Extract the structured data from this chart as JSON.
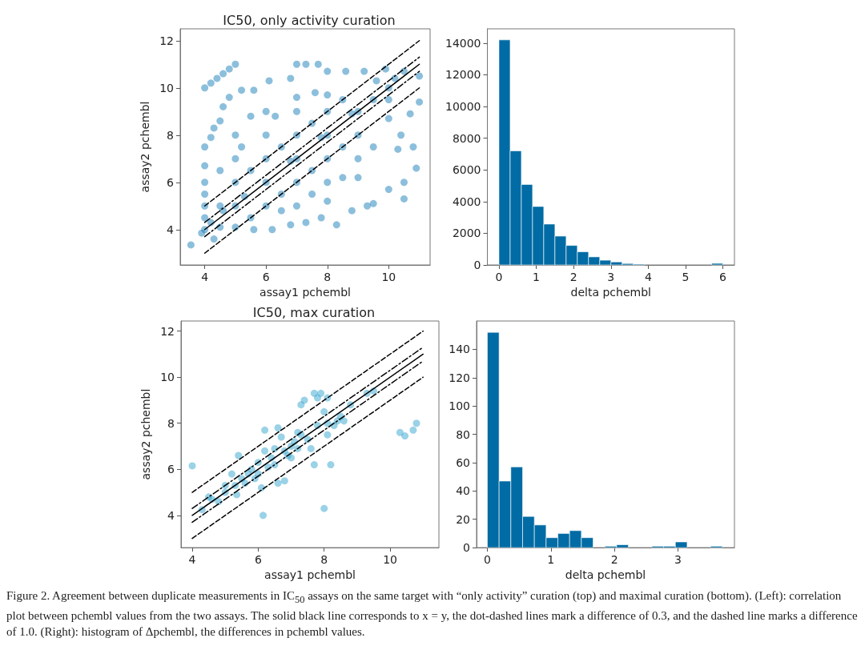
{
  "chart_data": [
    {
      "type": "scatter",
      "title": "IC50, only activity curation",
      "xlabel": "assay1 pchembl",
      "ylabel": "assay2 pchembl",
      "xlim": [
        3.2,
        11.35
      ],
      "ylim": [
        2.5,
        12.5
      ],
      "xticks": [
        4,
        6,
        8,
        10
      ],
      "yticks": [
        4,
        6,
        8,
        10,
        12
      ],
      "grid": false,
      "series": [
        {
          "type": "scatter",
          "marker": "circle",
          "color": "#0072b2",
          "x": [
            4,
            4.2,
            4.4,
            4.6,
            4.8,
            5,
            3.55,
            3.9,
            4,
            4,
            4,
            4,
            4,
            4,
            4,
            4.2,
            4.3,
            4.5,
            4.6,
            4.8,
            5.2,
            5.6,
            6.1,
            6.8,
            7.0,
            7.3,
            7.7,
            8.0,
            8.6,
            9.2,
            9.9,
            10.5,
            11,
            11,
            10.7,
            10.4,
            10.3,
            10.8,
            10.9,
            10.5,
            10.5,
            10.0,
            9.5,
            9.3,
            8.8,
            8.3,
            7.8,
            7.3,
            6.8,
            6.2,
            5.6,
            5.0,
            4.5,
            4.3,
            5,
            5,
            5,
            5,
            5.5,
            6,
            6,
            6,
            6,
            6,
            7,
            7,
            7,
            7,
            7,
            7,
            8,
            8,
            8,
            8,
            8,
            8,
            9,
            9,
            9,
            9,
            9.5,
            10,
            10,
            10,
            5.5,
            6.5,
            7.5,
            8.5,
            4.5,
            4.5,
            5.5,
            6.5,
            7.5,
            8.5,
            6.5,
            7.5,
            8.5,
            9.5,
            5.2,
            6.3,
            7.6,
            9.6,
            10.2,
            4.2,
            4.6,
            5.3,
            6.8,
            7.8,
            8.8
          ],
          "values": [
            10,
            10.2,
            10.4,
            10.6,
            10.8,
            11,
            3.35,
            3.85,
            4,
            4.5,
            5,
            5.5,
            6,
            6.7,
            7.5,
            7.9,
            8.3,
            8.6,
            9.2,
            9.6,
            9.9,
            9.9,
            10.3,
            10.4,
            11,
            11,
            11,
            10.7,
            10.7,
            10.7,
            10.8,
            10.7,
            10.5,
            9.4,
            8.9,
            8.0,
            7.4,
            7.5,
            6.6,
            6.0,
            5.3,
            5.7,
            5.1,
            5.0,
            4.8,
            4.2,
            4.5,
            4.3,
            4.2,
            4.0,
            4.0,
            4.1,
            4.1,
            3.6,
            5,
            6,
            7,
            8,
            8.8,
            6,
            7,
            8,
            9,
            5,
            5,
            6,
            7,
            8,
            9,
            9.6,
            6,
            7,
            8,
            9,
            9.7,
            5.2,
            7,
            8,
            9,
            6.2,
            9.5,
            9.5,
            8.7,
            10,
            4.5,
            5.5,
            6.5,
            7.5,
            5,
            6.5,
            6.5,
            7.5,
            8.5,
            9.5,
            4.8,
            5.5,
            6.2,
            7.5,
            7.5,
            8.8,
            9.8,
            10.3,
            10.4,
            4.3,
            4.8,
            5.4,
            6.9,
            7.9,
            8.9
          ]
        },
        {
          "type": "line",
          "color": "#000000",
          "line_style": "solid",
          "x": [
            4,
            11
          ],
          "values": [
            4,
            11
          ]
        },
        {
          "type": "line",
          "color": "#000000",
          "line_style": "dashdot",
          "x": [
            4,
            11
          ],
          "values": [
            4.3,
            11.3
          ]
        },
        {
          "type": "line",
          "color": "#000000",
          "line_style": "dashdot",
          "x": [
            4,
            11
          ],
          "values": [
            3.7,
            10.7
          ]
        },
        {
          "type": "line",
          "color": "#000000",
          "line_style": "dashed",
          "x": [
            4,
            11
          ],
          "values": [
            5,
            12
          ]
        },
        {
          "type": "line",
          "color": "#000000",
          "line_style": "dashed",
          "x": [
            4,
            11
          ],
          "values": [
            3,
            10
          ]
        }
      ]
    },
    {
      "type": "histogram",
      "xlabel": "delta pchembl",
      "xlim": [
        -0.31,
        6.31
      ],
      "ylim": [
        0,
        14900
      ],
      "xticks": [
        0,
        1,
        2,
        3,
        4,
        5,
        6
      ],
      "yticks": [
        0,
        2000,
        4000,
        6000,
        8000,
        10000,
        12000,
        14000
      ],
      "grid": false,
      "color": "#006ba4",
      "bins": [
        0,
        0.3,
        0.6,
        0.9,
        1.2,
        1.5,
        1.8,
        2.1,
        2.4,
        2.7,
        3.0,
        3.3,
        3.6,
        3.9,
        4.2,
        4.5,
        4.8,
        5.1,
        5.4,
        5.7,
        6.0
      ],
      "values": [
        14200,
        7200,
        5080,
        3690,
        2580,
        1820,
        1230,
        830,
        510,
        300,
        190,
        90,
        50,
        null,
        0,
        0,
        0,
        0,
        0,
        100
      ]
    },
    {
      "type": "scatter",
      "title": "IC50, max curation",
      "xlabel": "assay1 pchembl",
      "ylabel": "assay2 pchembl",
      "xlim": [
        3.66,
        11.48
      ],
      "ylim": [
        2.6,
        12.44
      ],
      "xticks": [
        4,
        6,
        8,
        10
      ],
      "yticks": [
        4,
        6,
        8,
        10,
        12
      ],
      "grid": false,
      "series": [
        {
          "type": "scatter",
          "marker": "circle",
          "color": "#1f9bc9",
          "x": [
            4,
            4.3,
            4.5,
            4.6,
            4.8,
            5.0,
            5.2,
            5.3,
            5.35,
            5.4,
            5.5,
            5.6,
            5.7,
            5.8,
            5.9,
            6.0,
            6.1,
            6.15,
            6.2,
            6.2,
            6.3,
            6.4,
            6.5,
            6.5,
            6.6,
            6.6,
            6.7,
            6.8,
            6.8,
            6.9,
            7.0,
            7.0,
            7.1,
            7.2,
            7.3,
            7.3,
            7.4,
            7.5,
            7.6,
            7.7,
            7.7,
            7.8,
            7.8,
            7.9,
            8.0,
            8.0,
            8.1,
            8.1,
            8.1,
            8.2,
            8.3,
            8.4,
            8.5,
            8.6,
            8.8,
            9.3,
            9.5,
            10.3,
            10.45,
            10.7,
            10.8,
            5.0,
            6.0,
            7.2
          ],
          "values": [
            6.15,
            4.25,
            4.8,
            4.7,
            4.6,
            5.3,
            5.8,
            5.3,
            4.9,
            6.6,
            5.6,
            5.4,
            5.8,
            6.0,
            5.6,
            6.3,
            5.2,
            4.0,
            6.8,
            7.7,
            6.1,
            6.5,
            6.9,
            6.2,
            7.8,
            5.4,
            7.4,
            6.8,
            5.5,
            6.6,
            7.0,
            6.5,
            7.2,
            6.9,
            7.5,
            8.8,
            9.0,
            7.3,
            6.9,
            6.2,
            9.3,
            9.1,
            7.9,
            9.3,
            8.5,
            4.3,
            9.1,
            7.5,
            8.0,
            6.2,
            7.9,
            8.1,
            8.3,
            8.1,
            8.8,
            9.3,
            9.4,
            7.6,
            7.45,
            7.7,
            8.0,
            5.0,
            5.8,
            7.6
          ]
        },
        {
          "type": "line",
          "color": "#000000",
          "line_style": "solid",
          "x": [
            4,
            11
          ],
          "values": [
            4,
            11
          ]
        },
        {
          "type": "line",
          "color": "#000000",
          "line_style": "dashdot",
          "x": [
            4,
            11
          ],
          "values": [
            4.3,
            11.3
          ]
        },
        {
          "type": "line",
          "color": "#000000",
          "line_style": "dashdot",
          "x": [
            4,
            11
          ],
          "values": [
            3.7,
            10.7
          ]
        },
        {
          "type": "line",
          "color": "#000000",
          "line_style": "dashed",
          "x": [
            4,
            11
          ],
          "values": [
            5,
            12
          ]
        },
        {
          "type": "line",
          "color": "#000000",
          "line_style": "dashed",
          "x": [
            4,
            11
          ],
          "values": [
            3,
            10
          ]
        }
      ]
    },
    {
      "type": "histogram",
      "xlabel": "delta pchembl",
      "xlim": [
        -0.17,
        3.89
      ],
      "ylim": [
        0,
        160
      ],
      "xticks": [
        0,
        1,
        2,
        3
      ],
      "yticks": [
        0,
        20,
        40,
        60,
        80,
        100,
        120,
        140
      ],
      "grid": false,
      "color": "#006ba4",
      "bins": [
        0,
        0.185,
        0.37,
        0.555,
        0.74,
        0.925,
        1.11,
        1.295,
        1.48,
        1.665,
        1.85,
        2.035,
        2.22,
        2.405,
        2.59,
        2.775,
        2.96,
        3.145,
        3.33,
        3.515,
        3.7
      ],
      "values": [
        152,
        47,
        57,
        22,
        16,
        7,
        10,
        12,
        7,
        0,
        1,
        2,
        0,
        0,
        1,
        1,
        4,
        0,
        0,
        1
      ],
      "annotations": [
        "Figure 2. Agreement between duplicate measurements in IC$_{50}$ assays on the same target with “only activity” curation (top) and maximal curation (bottom). (Left): correlation plot between pchembl values from the two assays. The solid black line corresponds to x = y, the dot-dashed lines mark a difference of 0.3, and the dashed line marks a difference of 1.0. (Right): histogram of Δpchembl, the differences in pchembl values."
      ]
    }
  ]
}
